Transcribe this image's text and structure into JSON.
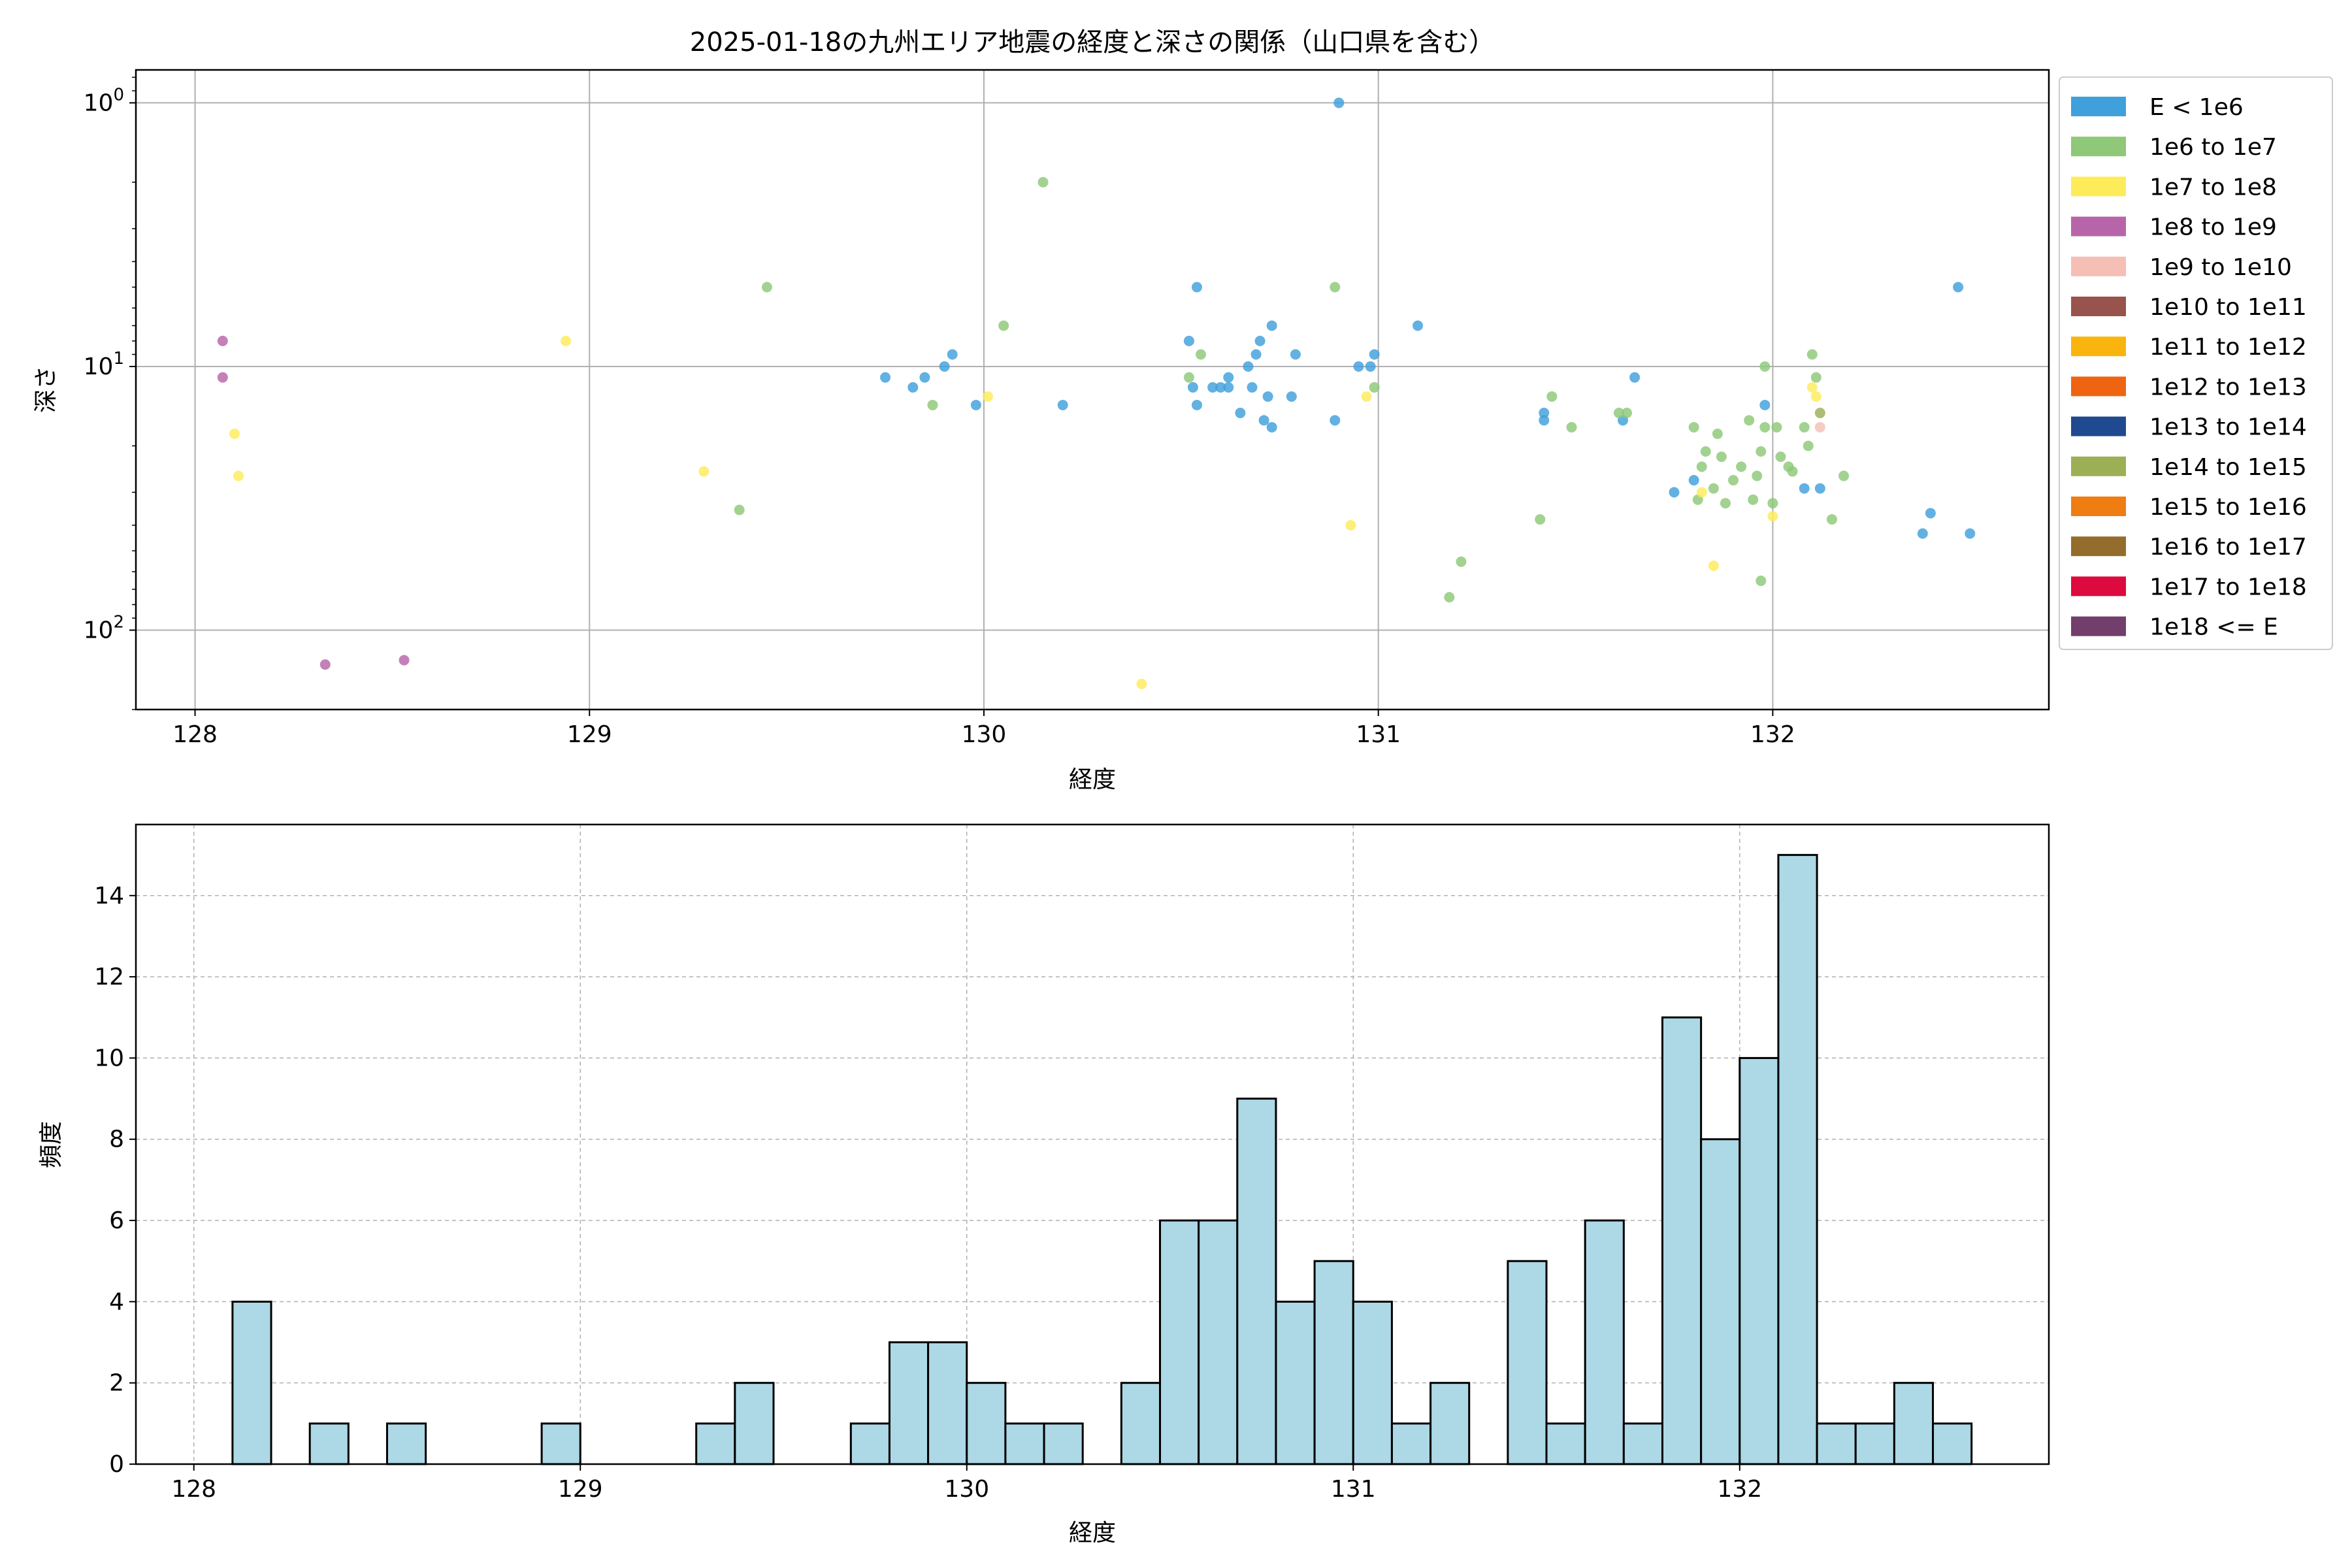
{
  "figure_title": "2025-01-18の九州エリア地震の経度と深さの関係（山口県を含む）",
  "chart_data": [
    {
      "type": "scatter",
      "title": "2025-01-18の九州エリア地震の経度と深さの関係（山口県を含む）",
      "xlabel": "経度",
      "ylabel": "深さ",
      "xlim": [
        127.85,
        132.7
      ],
      "ylim": [
        200,
        0.75
      ],
      "yscale": "log",
      "y_inverted": true,
      "xticks": [
        128,
        129,
        130,
        131,
        132
      ],
      "xtick_labels": [
        "128",
        "129",
        "130",
        "131",
        "132"
      ],
      "yticks": [
        1,
        10,
        100
      ],
      "ytick_labels": [
        "10⁰",
        "10¹",
        "10²"
      ],
      "grid": true,
      "legend_position": "outside-right",
      "legend": [
        {
          "label": "E < 1e6",
          "color": "#3fa0dc"
        },
        {
          "label": "1e6 to 1e7",
          "color": "#8ec878"
        },
        {
          "label": "1e7 to 1e8",
          "color": "#fdeb5a"
        },
        {
          "label": "1e8 to 1e9",
          "color": "#b765a8"
        },
        {
          "label": "1e9 to 1e10",
          "color": "#f5bfb5"
        },
        {
          "label": "1e10 to 1e11",
          "color": "#98534c"
        },
        {
          "label": "1e11 to 1e12",
          "color": "#f9b50e"
        },
        {
          "label": "1e12 to 1e13",
          "color": "#ee6410"
        },
        {
          "label": "1e13 to 1e14",
          "color": "#1f4a8f"
        },
        {
          "label": "1e14 to 1e15",
          "color": "#9caf55"
        },
        {
          "label": "1e15 to 1e16",
          "color": "#ef7d12"
        },
        {
          "label": "1e16 to 1e17",
          "color": "#946c2b"
        },
        {
          "label": "1e17 to 1e18",
          "color": "#dc0a3e"
        },
        {
          "label": "1e18 <= E",
          "color": "#723e6c"
        }
      ],
      "series": [
        {
          "color": "#3fa0dc",
          "points": [
            [
              129.75,
              11
            ],
            [
              129.82,
              12
            ],
            [
              129.85,
              11
            ],
            [
              129.9,
              10
            ],
            [
              129.92,
              9
            ],
            [
              129.98,
              14
            ],
            [
              130.2,
              14
            ],
            [
              130.52,
              8
            ],
            [
              130.53,
              12
            ],
            [
              130.54,
              5
            ],
            [
              130.54,
              14
            ],
            [
              130.58,
              12
            ],
            [
              130.6,
              12
            ],
            [
              130.62,
              11
            ],
            [
              130.62,
              12
            ],
            [
              130.65,
              15
            ],
            [
              130.67,
              10
            ],
            [
              130.68,
              12
            ],
            [
              130.69,
              9
            ],
            [
              130.7,
              8
            ],
            [
              130.71,
              16
            ],
            [
              130.72,
              13
            ],
            [
              130.73,
              17
            ],
            [
              130.73,
              7
            ],
            [
              130.78,
              13
            ],
            [
              130.79,
              9
            ],
            [
              130.89,
              16
            ],
            [
              130.9,
              1
            ],
            [
              130.95,
              10
            ],
            [
              130.98,
              10
            ],
            [
              130.99,
              9
            ],
            [
              131.1,
              7
            ],
            [
              131.42,
              15
            ],
            [
              131.42,
              16
            ],
            [
              131.62,
              16
            ],
            [
              131.65,
              11
            ],
            [
              131.75,
              30
            ],
            [
              131.8,
              27
            ],
            [
              131.98,
              14
            ],
            [
              132.08,
              29
            ],
            [
              132.12,
              29
            ],
            [
              132.38,
              43
            ],
            [
              132.4,
              36
            ],
            [
              132.47,
              5
            ],
            [
              132.5,
              43
            ]
          ]
        },
        {
          "color": "#8ec878",
          "points": [
            [
              129.38,
              35
            ],
            [
              129.45,
              5
            ],
            [
              129.87,
              14
            ],
            [
              130.05,
              7
            ],
            [
              130.15,
              2
            ],
            [
              130.52,
              11
            ],
            [
              130.55,
              9
            ],
            [
              130.89,
              5
            ],
            [
              130.99,
              12
            ],
            [
              131.18,
              75
            ],
            [
              131.21,
              55
            ],
            [
              131.41,
              38
            ],
            [
              131.44,
              13
            ],
            [
              131.49,
              17
            ],
            [
              131.61,
              15
            ],
            [
              131.63,
              15
            ],
            [
              131.8,
              17
            ],
            [
              131.81,
              32
            ],
            [
              131.82,
              24
            ],
            [
              131.83,
              21
            ],
            [
              131.85,
              29
            ],
            [
              131.86,
              18
            ],
            [
              131.87,
              22
            ],
            [
              131.88,
              33
            ],
            [
              131.9,
              27
            ],
            [
              131.92,
              24
            ],
            [
              131.94,
              16
            ],
            [
              131.95,
              32
            ],
            [
              131.96,
              26
            ],
            [
              131.97,
              65
            ],
            [
              131.97,
              21
            ],
            [
              131.98,
              10
            ],
            [
              131.98,
              17
            ],
            [
              132.0,
              33
            ],
            [
              132.01,
              17
            ],
            [
              132.02,
              22
            ],
            [
              132.04,
              24
            ],
            [
              132.05,
              25
            ],
            [
              132.08,
              17
            ],
            [
              132.09,
              20
            ],
            [
              132.1,
              9
            ],
            [
              132.11,
              11
            ],
            [
              132.15,
              38
            ],
            [
              132.18,
              26
            ]
          ]
        },
        {
          "color": "#fdeb5a",
          "points": [
            [
              128.1,
              18
            ],
            [
              128.11,
              26
            ],
            [
              128.94,
              8
            ],
            [
              129.29,
              25
            ],
            [
              130.01,
              13
            ],
            [
              130.4,
              160
            ],
            [
              130.93,
              40
            ],
            [
              130.97,
              13
            ],
            [
              131.82,
              30
            ],
            [
              131.85,
              57
            ],
            [
              132.0,
              37
            ],
            [
              132.1,
              12
            ],
            [
              132.11,
              13
            ]
          ]
        },
        {
          "color": "#b765a8",
          "points": [
            [
              128.07,
              8
            ],
            [
              128.07,
              11
            ],
            [
              128.33,
              135
            ],
            [
              128.53,
              130
            ]
          ]
        },
        {
          "color": "#f5bfb5",
          "points": [
            [
              132.12,
              17
            ]
          ]
        },
        {
          "color": "#9caf55",
          "points": [
            [
              132.12,
              15
            ]
          ]
        }
      ]
    },
    {
      "type": "bar",
      "subtype": "histogram",
      "xlabel": "経度",
      "ylabel": "頻度",
      "xlim": [
        127.85,
        132.8
      ],
      "ylim": [
        0,
        15.75
      ],
      "xticks": [
        128,
        129,
        130,
        131,
        132
      ],
      "xtick_labels": [
        "128",
        "129",
        "130",
        "131",
        "132"
      ],
      "yticks": [
        0,
        2,
        4,
        6,
        8,
        10,
        12,
        14
      ],
      "ytick_labels": [
        "0",
        "2",
        "4",
        "6",
        "8",
        "10",
        "12",
        "14"
      ],
      "grid": true,
      "bar_color": "#add8e6",
      "edge_color": "#000000",
      "bin_start": 128.0,
      "bin_width": 0.1,
      "values": [
        0,
        4,
        0,
        1,
        0,
        1,
        0,
        0,
        0,
        1,
        0,
        0,
        0,
        1,
        2,
        0,
        0,
        1,
        3,
        3,
        2,
        1,
        1,
        0,
        2,
        6,
        6,
        9,
        4,
        5,
        4,
        1,
        2,
        0,
        5,
        1,
        6,
        1,
        11,
        8,
        10,
        15,
        1,
        1,
        2,
        1
      ]
    }
  ]
}
